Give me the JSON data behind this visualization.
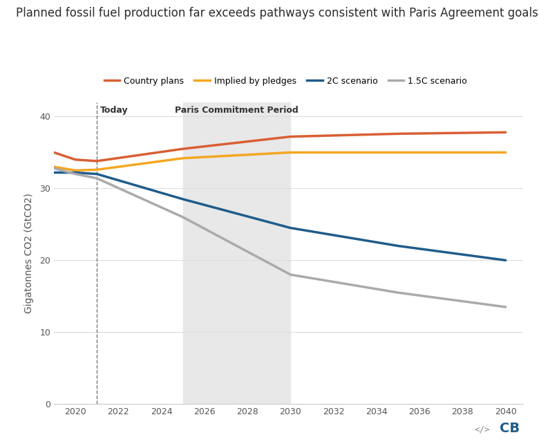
{
  "title": "Planned fossil fuel production far exceeds pathways consistent with Paris Agreement goals",
  "ylabel": "Gigatonnes CO2 (GtCO2)",
  "xlim": [
    2019.0,
    2040.8
  ],
  "ylim": [
    0,
    42
  ],
  "yticks": [
    0,
    10,
    20,
    30,
    40
  ],
  "xticks": [
    2020,
    2022,
    2024,
    2026,
    2028,
    2030,
    2032,
    2034,
    2036,
    2038,
    2040
  ],
  "background_color": "#ffffff",
  "plot_bg_color": "#ffffff",
  "shaded_region": [
    2025,
    2030
  ],
  "shaded_color": "#e8e8e8",
  "today_line_x": 2021,
  "today_label": "Today",
  "paris_label": "Paris Commitment Period",
  "series": {
    "country_plans": {
      "label": "Country plans",
      "color": "#d95f33",
      "linewidth": 2.5,
      "x": [
        2019,
        2020,
        2021,
        2025,
        2030,
        2035,
        2040
      ],
      "y": [
        35.0,
        34.0,
        33.8,
        35.5,
        37.2,
        37.6,
        37.8
      ]
    },
    "implied_pledges": {
      "label": "Implied by pledges",
      "color": "#f5a623",
      "linewidth": 2.5,
      "x": [
        2019,
        2020,
        2021,
        2025,
        2030,
        2035,
        2040
      ],
      "y": [
        33.0,
        32.5,
        32.6,
        34.2,
        35.0,
        35.0,
        35.0
      ]
    },
    "two_c": {
      "label": "2C scenario",
      "color": "#1f5c8b",
      "linewidth": 2.5,
      "x": [
        2019,
        2020,
        2021,
        2025,
        2030,
        2035,
        2040
      ],
      "y": [
        32.2,
        32.2,
        32.0,
        28.5,
        24.5,
        22.0,
        20.0
      ]
    },
    "one_point_five_c": {
      "label": "1.5C scenario",
      "color": "#aaaaaa",
      "linewidth": 2.5,
      "x": [
        2019,
        2020,
        2021,
        2025,
        2030,
        2035,
        2040
      ],
      "y": [
        32.8,
        32.0,
        31.4,
        26.0,
        18.0,
        15.5,
        13.5
      ]
    }
  },
  "title_fontsize": 12,
  "axis_label_fontsize": 10,
  "tick_fontsize": 9,
  "legend_fontsize": 9,
  "title_color": "#2c2c2c",
  "tick_color": "#555555",
  "grid_color": "#dddddd",
  "watermark_cb": "CB",
  "watermark_icon": "</>",
  "watermark_color": "#1f5c8b",
  "watermark_icon_color": "#888888"
}
